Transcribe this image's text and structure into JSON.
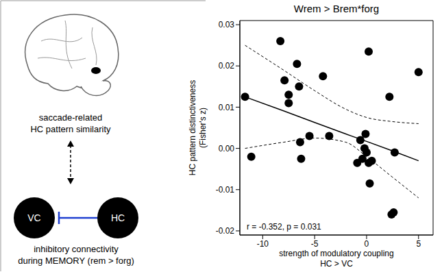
{
  "chart_data": {
    "type": "scatter",
    "title": "Wrem > Brem*forg",
    "x_label": [
      "strength of modulatory coupling",
      "HC > VC"
    ],
    "y_label": [
      "HC pattern distinctiveness",
      "(Fisher's z)"
    ],
    "annotation": "r = -0.352, p = 0.031",
    "xlim": [
      -12.2,
      6.4
    ],
    "ylim": [
      -0.021,
      0.031
    ],
    "xticks": [
      -10,
      -5,
      0,
      5
    ],
    "yticks": [
      -0.02,
      -0.01,
      {
        "value": 0,
        "label": "0.00"
      },
      0.01,
      0.02,
      0.03
    ],
    "grid": false,
    "color": "#000000",
    "marker": "circle",
    "points": {
      "x": [
        -11.7,
        -11.1,
        -8.3,
        -7.9,
        -7.5,
        -7.5,
        -6.7,
        -6.5,
        -6.4,
        -6.3,
        -5.5,
        -4.2,
        -3.6,
        -0.9,
        -0.6,
        -0.4,
        -0.1,
        0.0,
        0.2,
        0.2,
        0.3,
        0.5,
        -0.2,
        2.2,
        2.4,
        2.6,
        2.7,
        5.0
      ],
      "y": [
        0.0125,
        -0.002,
        0.026,
        0.0165,
        0.013,
        0.011,
        0.0205,
        0.015,
        0.0015,
        -0.0025,
        0.003,
        0.0175,
        0.003,
        -0.0035,
        0.002,
        -0.0025,
        0.0035,
        -0.001,
        -0.0035,
        0.0235,
        -0.0085,
        -0.003,
        0.0,
        0.0125,
        -0.016,
        -0.0155,
        -0.001,
        0.0185
      ]
    },
    "fit": {
      "x": [
        -11.7,
        -8,
        -5,
        -2,
        0,
        2.5,
        5
      ],
      "y": [
        0.0125,
        0.0091,
        0.0063,
        0.0035,
        0.0017,
        -0.0006,
        -0.003
      ],
      "ci_lower": [
        0.0,
        0.0015,
        0.0025,
        0.0015,
        -0.002,
        -0.007,
        -0.012
      ],
      "ci_upper": [
        0.025,
        0.019,
        0.014,
        0.0095,
        0.0075,
        0.0065,
        0.006
      ],
      "line_style": "solid"
    }
  },
  "diagram": {
    "brain_label": [
      "saccade-related",
      "HC pattern similarity"
    ],
    "nodes": [
      "VC",
      "HC"
    ],
    "connection_label": [
      "inhibitory connectivity",
      "during MEMORY (rem > forg)"
    ]
  }
}
